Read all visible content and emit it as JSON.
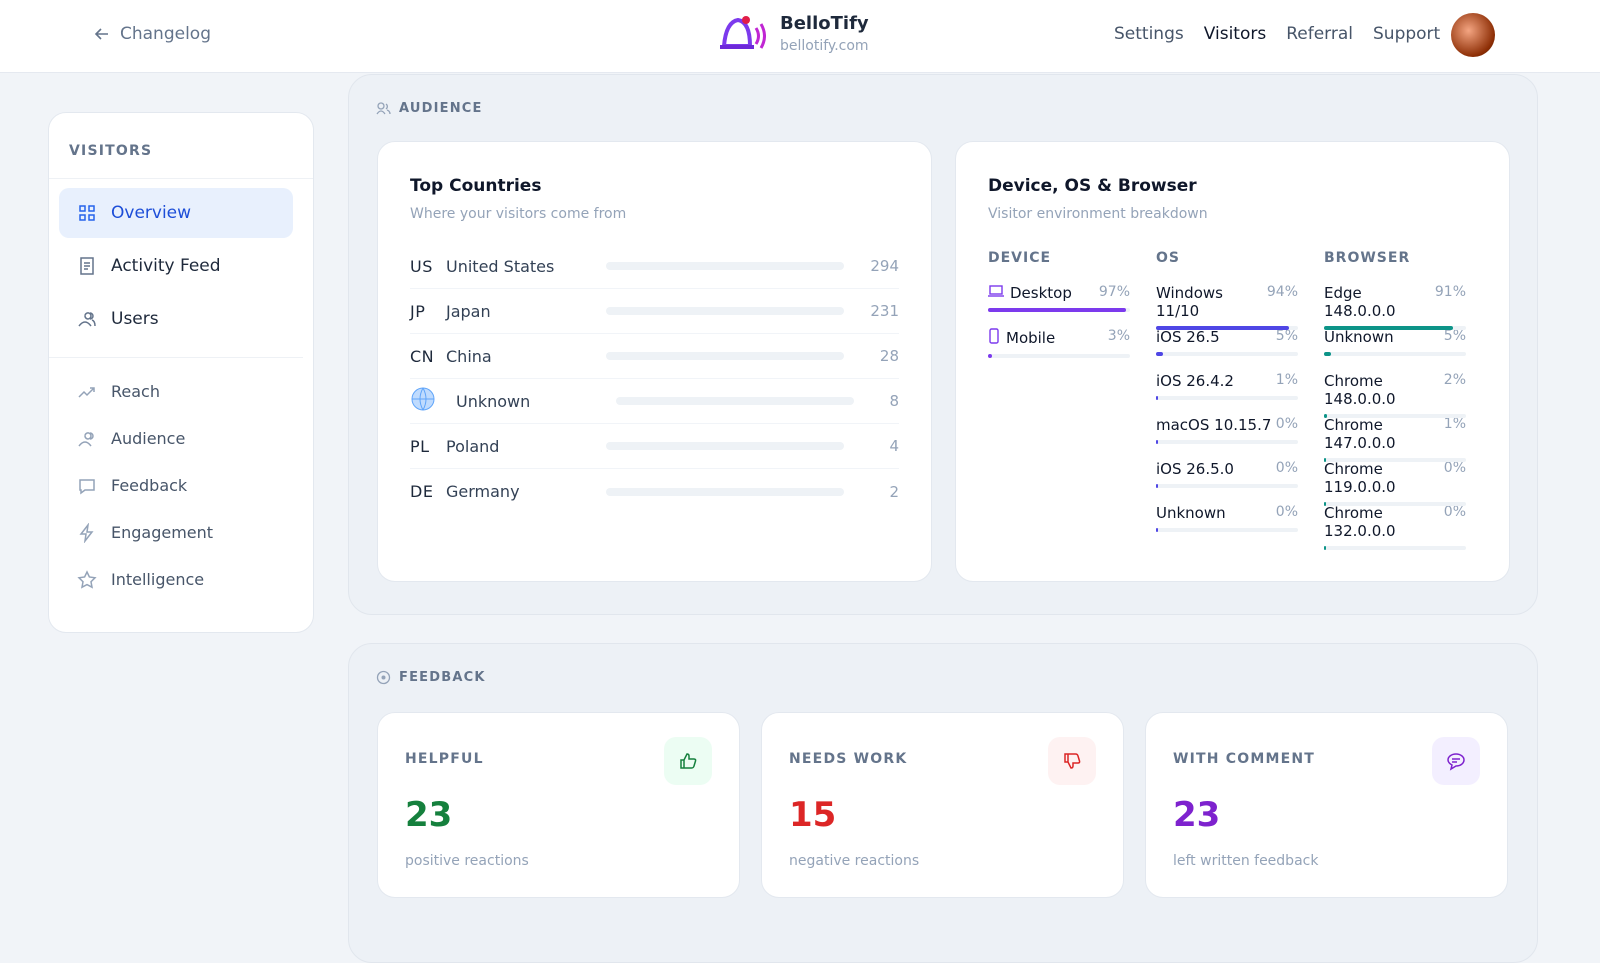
{
  "header": {
    "back": "Changelog",
    "brand": "BelloTify",
    "domain": "bellotify.com",
    "nav": [
      "Settings",
      "Visitors",
      "Referral",
      "Support"
    ]
  },
  "sidebar": {
    "title": "VISITORS",
    "primary": [
      "Overview",
      "Activity Feed",
      "Users"
    ],
    "secondary": [
      "Reach",
      "Audience",
      "Feedback",
      "Engagement",
      "Intelligence"
    ]
  },
  "audience": {
    "heading": "AUDIENCE",
    "countries": {
      "title": "Top Countries",
      "subtitle": "Where your visitors come from",
      "rows": [
        {
          "code": "US",
          "name": "United States",
          "count": 294
        },
        {
          "code": "JP",
          "name": "Japan",
          "count": 231
        },
        {
          "code": "CN",
          "name": "China",
          "count": 28
        },
        {
          "name": "Unknown",
          "count": 8
        },
        {
          "code": "PL",
          "name": "Poland",
          "count": 4
        },
        {
          "code": "DE",
          "name": "Germany",
          "count": 2
        }
      ]
    },
    "devices": {
      "title": "Device, OS & Browser",
      "subtitle": "Visitor environment breakdown",
      "columns": [
        {
          "heading": "DEVICE",
          "rows": [
            {
              "label": "Desktop",
              "pct": {
                "value": 97,
                "label": "97%"
              }
            },
            {
              "label": "Mobile",
              "pct": {
                "value": 3,
                "label": "3%"
              }
            }
          ]
        },
        {
          "heading": "OS",
          "rows": [
            {
              "label": "Windows 11/10",
              "pct": {
                "value": 94,
                "label": "94%"
              }
            },
            {
              "label": "iOS 26.5",
              "pct": {
                "value": 5,
                "label": "5%"
              }
            },
            {
              "label": "iOS 26.4.2",
              "pct": {
                "value": 1,
                "label": "1%"
              }
            },
            {
              "label": "macOS 10.15.7",
              "pct": {
                "value": 0,
                "label": "0%"
              }
            },
            {
              "label": "iOS 26.5.0",
              "pct": {
                "value": 0,
                "label": "0%"
              }
            },
            {
              "label": "Unknown",
              "pct": {
                "value": 0,
                "label": "0%"
              }
            }
          ]
        },
        {
          "heading": "BROWSER",
          "rows": [
            {
              "label": "Edge 148.0.0.0",
              "pct": {
                "value": 91,
                "label": "91%"
              }
            },
            {
              "label": "Unknown",
              "pct": {
                "value": 5,
                "label": "5%"
              }
            },
            {
              "label": "Chrome 148.0.0.0",
              "pct": {
                "value": 2,
                "label": "2%"
              }
            },
            {
              "label": "Chrome 147.0.0.0",
              "pct": {
                "value": 1,
                "label": "1%"
              }
            },
            {
              "label": "Chrome 119.0.0.0",
              "pct": {
                "value": 0,
                "label": "0%"
              }
            },
            {
              "label": "Chrome 132.0.0.0",
              "pct": {
                "value": 0,
                "label": "0%"
              }
            }
          ]
        }
      ]
    }
  },
  "feedback": {
    "heading": "FEEDBACK",
    "cards": [
      {
        "label": "HELPFUL",
        "value": 23,
        "caption": "positive reactions"
      },
      {
        "label": "NEEDS WORK",
        "value": 15,
        "caption": "negative reactions"
      },
      {
        "label": "WITH COMMENT",
        "value": 23,
        "caption": "left written feedback"
      }
    ]
  }
}
